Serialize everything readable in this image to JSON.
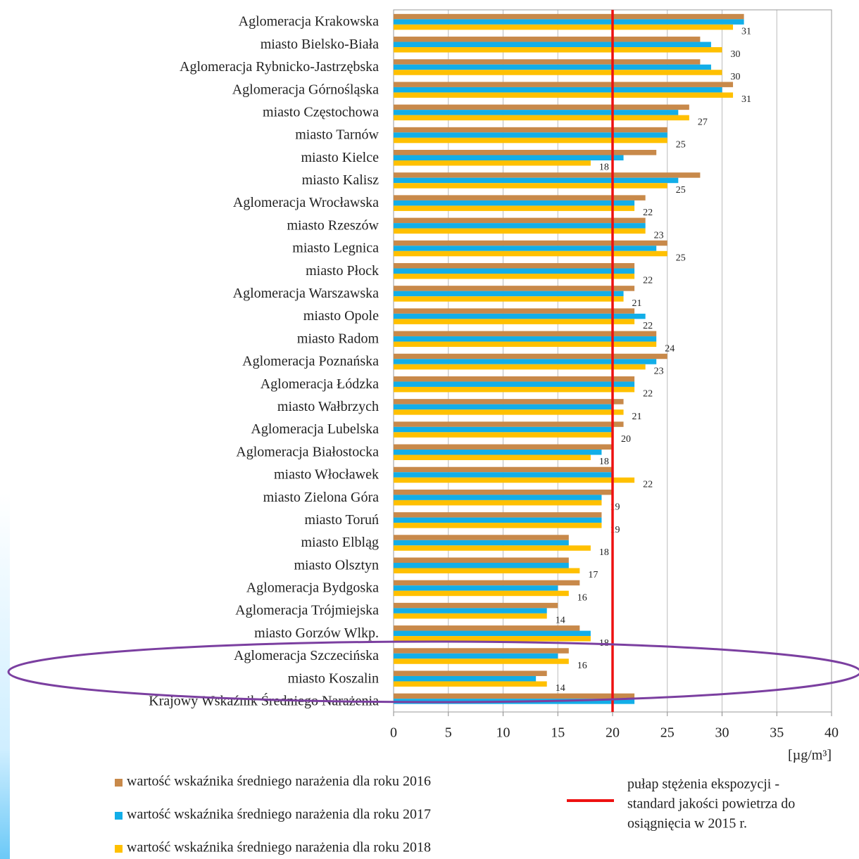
{
  "chart_data": {
    "type": "barh",
    "categories": [
      "Aglomeracja Krakowska",
      "miasto Bielsko-Biała",
      "Aglomeracja Rybnicko-Jastrzębska",
      "Aglomeracja Górnośląska",
      "miasto Częstochowa",
      "miasto Tarnów",
      "miasto Kielce",
      "miasto Kalisz",
      "Aglomeracja Wrocławska",
      "miasto Rzeszów",
      "miasto Legnica",
      "miasto Płock",
      "Aglomeracja Warszawska",
      "miasto Opole",
      "miasto Radom",
      "Aglomeracja Poznańska",
      "Aglomeracja Łódzka",
      "miasto Wałbrzych",
      "Aglomeracja Lubelska",
      "Aglomeracja Białostocka",
      "miasto Włocławek",
      "miasto Zielona Góra",
      "miasto Toruń",
      "miasto Elbląg",
      "miasto Olsztyn",
      "Aglomeracja Bydgoska",
      "Aglomeracja Trójmiejska",
      "miasto Gorzów Wlkp.",
      "Aglomeracja Szczecińska",
      "miasto Koszalin",
      "Krajowy Wskaźnik Średniego Narażenia"
    ],
    "series": [
      {
        "name": "wartość wskaźnika średniego narażenia dla roku 2016",
        "color": "#c8894a",
        "values": [
          32,
          28,
          28,
          31,
          27,
          25,
          24,
          28,
          23,
          23,
          25,
          22,
          22,
          22,
          24,
          25,
          22,
          21,
          21,
          20,
          20,
          20,
          19,
          16,
          16,
          17,
          15,
          17,
          16,
          14,
          22
        ]
      },
      {
        "name": "wartość wskaźnika średniego narażenia dla roku 2017",
        "color": "#12aee8",
        "values": [
          32,
          29,
          29,
          30,
          26,
          25,
          21,
          26,
          22,
          23,
          24,
          22,
          21,
          23,
          24,
          24,
          22,
          20,
          20,
          19,
          20,
          19,
          19,
          16,
          16,
          15,
          14,
          18,
          15,
          13,
          22
        ]
      },
      {
        "name": "wartość wskaźnika średniego narażenia dla roku 2018",
        "color": "#ffc000",
        "values": [
          31,
          30,
          30,
          31,
          27,
          25,
          18,
          25,
          22,
          23,
          25,
          22,
          21,
          22,
          24,
          23,
          22,
          21,
          20,
          18,
          22,
          19,
          19,
          18,
          17,
          16,
          14,
          18,
          16,
          14,
          null
        ],
        "data_labels": true
      }
    ],
    "xlim": [
      0,
      40
    ],
    "xticks": [
      0,
      5,
      10,
      15,
      20,
      25,
      30,
      35,
      40
    ],
    "grid": true,
    "x_label": "[µg/m³]",
    "reference_line": {
      "value": 20,
      "color": "#ee1111",
      "label": [
        "pułap stężenia ekspozycji -",
        "standard jakości powietrza do",
        "osiągnięcia w 2015 r."
      ]
    }
  }
}
